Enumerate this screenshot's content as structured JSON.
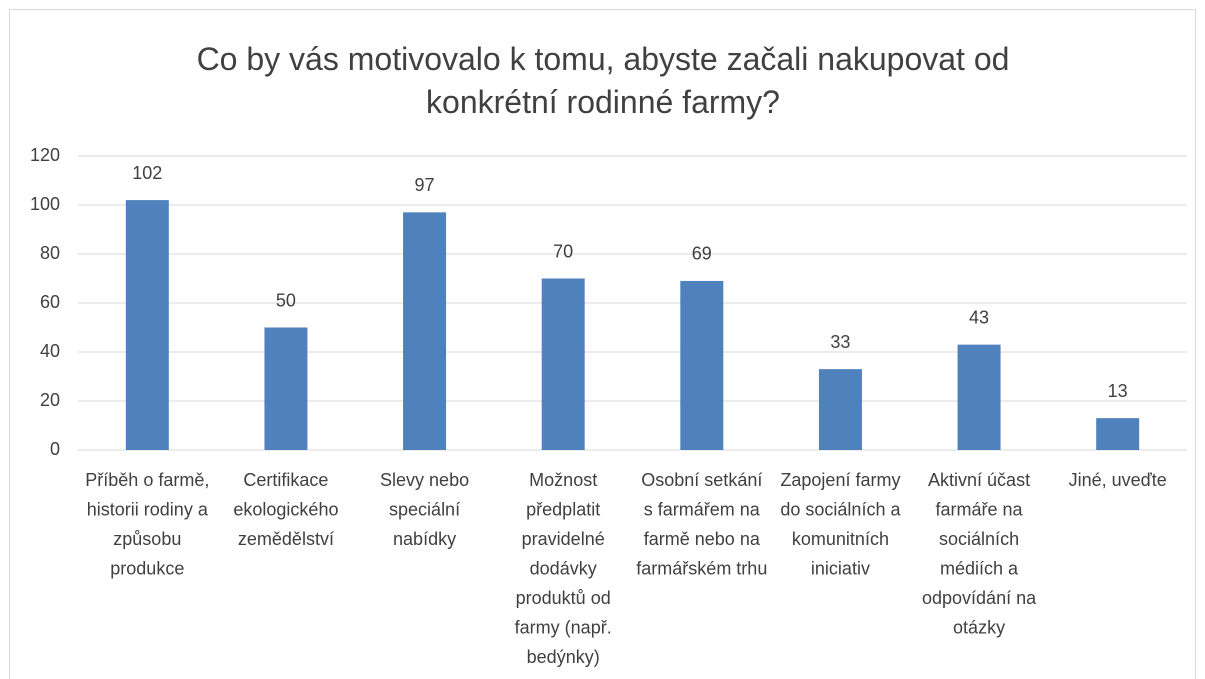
{
  "chart_data": {
    "type": "bar",
    "title": "Co by vás motivovalo k tomu, abyste začali nakupovat od konkrétní rodinné farmy?",
    "categories": [
      "Příběh o farmě, historii rodiny a způsobu produkce",
      "Certifikace ekologického zemědělství",
      "Slevy nebo speciální nabídky",
      "Možnost předplatit pravidelné dodávky produktů od farmy (např. bedýnky)",
      "Osobní setkání s farmářem na farmě nebo na farmářském trhu",
      "Zapojení farmy do sociálních a komunitních iniciativ",
      "Aktivní účast farmáře na sociálních médiích a odpovídání na otázky",
      "Jiné, uveďte"
    ],
    "values": [
      102,
      50,
      97,
      70,
      69,
      33,
      43,
      13
    ],
    "color": "#4f81bd",
    "ylim": [
      0,
      120
    ],
    "yticks": [
      0,
      20,
      40,
      60,
      80,
      100,
      120
    ],
    "grid": true
  }
}
